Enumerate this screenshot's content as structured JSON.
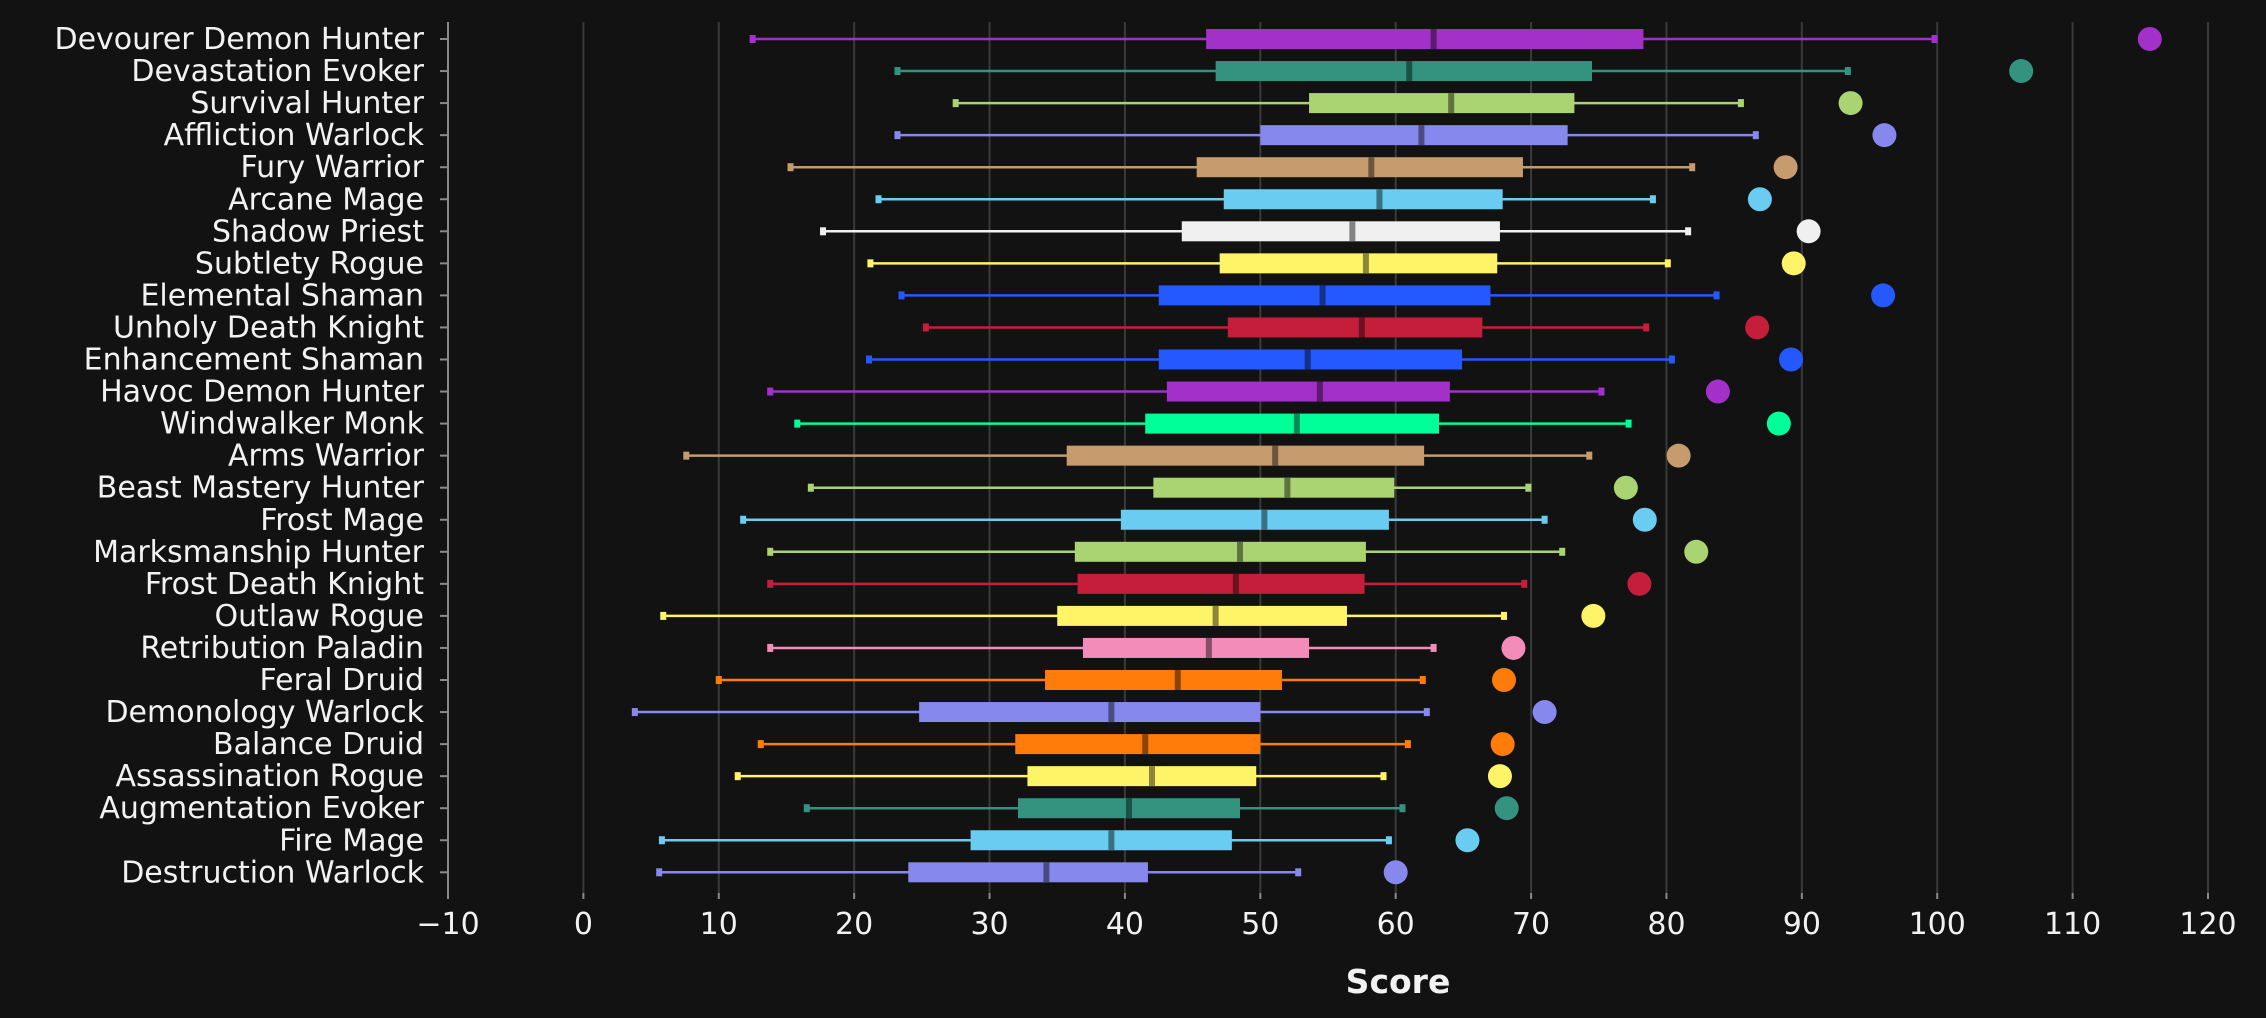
{
  "chart_data": {
    "type": "box",
    "orientation": "horizontal",
    "xlabel": "Score",
    "ylabel": "",
    "xlim": [
      -10,
      120
    ],
    "xticks": [
      -10,
      0,
      10,
      20,
      30,
      40,
      50,
      60,
      70,
      80,
      90,
      100,
      110,
      120
    ],
    "grid": "vertical",
    "series": [
      {
        "name": "Devourer Demon Hunter",
        "color": "#a330c9",
        "whisker_low": 12.5,
        "q1": 46.0,
        "median": 62.8,
        "q3": 78.3,
        "whisker_high": 99.8,
        "max": 115.7
      },
      {
        "name": "Devastation Evoker",
        "color": "#33937f",
        "whisker_low": 23.2,
        "q1": 46.7,
        "median": 61.0,
        "q3": 74.5,
        "whisker_high": 93.4,
        "max": 106.2
      },
      {
        "name": "Survival Hunter",
        "color": "#aad372",
        "whisker_low": 27.5,
        "q1": 53.6,
        "median": 64.1,
        "q3": 73.2,
        "whisker_high": 85.5,
        "max": 93.6
      },
      {
        "name": "Affliction Warlock",
        "color": "#8788ee",
        "whisker_low": 23.2,
        "q1": 50.0,
        "median": 61.9,
        "q3": 72.7,
        "whisker_high": 86.6,
        "max": 96.1
      },
      {
        "name": "Fury Warrior",
        "color": "#c69b6d",
        "whisker_low": 15.3,
        "q1": 45.3,
        "median": 58.2,
        "q3": 69.4,
        "whisker_high": 81.9,
        "max": 88.8
      },
      {
        "name": "Arcane Mage",
        "color": "#69ccf0",
        "whisker_low": 21.8,
        "q1": 47.3,
        "median": 58.8,
        "q3": 67.9,
        "whisker_high": 79.0,
        "max": 86.9
      },
      {
        "name": "Shadow Priest",
        "color": "#f0f0f0",
        "whisker_low": 17.7,
        "q1": 44.2,
        "median": 56.8,
        "q3": 67.7,
        "whisker_high": 81.6,
        "max": 90.5
      },
      {
        "name": "Subtlety Rogue",
        "color": "#fff468",
        "whisker_low": 21.2,
        "q1": 47.0,
        "median": 57.8,
        "q3": 67.5,
        "whisker_high": 80.1,
        "max": 89.4
      },
      {
        "name": "Elemental Shaman",
        "color": "#2459ff",
        "whisker_low": 23.5,
        "q1": 42.5,
        "median": 54.6,
        "q3": 67.0,
        "whisker_high": 83.7,
        "max": 96.0
      },
      {
        "name": "Unholy Death Knight",
        "color": "#c41e3a",
        "whisker_low": 25.3,
        "q1": 47.6,
        "median": 57.5,
        "q3": 66.4,
        "whisker_high": 78.5,
        "max": 86.7
      },
      {
        "name": "Enhancement Shaman",
        "color": "#2459ff",
        "whisker_low": 21.1,
        "q1": 42.5,
        "median": 53.5,
        "q3": 64.9,
        "whisker_high": 80.4,
        "max": 89.2
      },
      {
        "name": "Havoc Demon Hunter",
        "color": "#a330c9",
        "whisker_low": 13.8,
        "q1": 43.1,
        "median": 54.4,
        "q3": 64.0,
        "whisker_high": 75.2,
        "max": 83.8
      },
      {
        "name": "Windwalker Monk",
        "color": "#00ff98",
        "whisker_low": 15.8,
        "q1": 41.5,
        "median": 52.7,
        "q3": 63.2,
        "whisker_high": 77.2,
        "max": 88.3
      },
      {
        "name": "Arms Warrior",
        "color": "#c69b6d",
        "whisker_low": 7.6,
        "q1": 35.7,
        "median": 51.1,
        "q3": 62.1,
        "whisker_high": 74.3,
        "max": 80.9
      },
      {
        "name": "Beast Mastery Hunter",
        "color": "#aad372",
        "whisker_low": 16.8,
        "q1": 42.1,
        "median": 52.0,
        "q3": 59.9,
        "whisker_high": 69.8,
        "max": 77.0
      },
      {
        "name": "Frost Mage",
        "color": "#69ccf0",
        "whisker_low": 11.8,
        "q1": 39.7,
        "median": 50.3,
        "q3": 59.5,
        "whisker_high": 71.0,
        "max": 78.4
      },
      {
        "name": "Marksmanship Hunter",
        "color": "#aad372",
        "whisker_low": 13.8,
        "q1": 36.3,
        "median": 48.5,
        "q3": 57.8,
        "whisker_high": 72.3,
        "max": 82.2
      },
      {
        "name": "Frost Death Knight",
        "color": "#c41e3a",
        "whisker_low": 13.8,
        "q1": 36.5,
        "median": 48.2,
        "q3": 57.7,
        "whisker_high": 69.5,
        "max": 78.0
      },
      {
        "name": "Outlaw Rogue",
        "color": "#fff468",
        "whisker_low": 5.9,
        "q1": 35.0,
        "median": 46.7,
        "q3": 56.4,
        "whisker_high": 68.0,
        "max": 74.6
      },
      {
        "name": "Retribution Paladin",
        "color": "#f48cba",
        "whisker_low": 13.8,
        "q1": 36.9,
        "median": 46.2,
        "q3": 53.6,
        "whisker_high": 62.8,
        "max": 68.7
      },
      {
        "name": "Feral Druid",
        "color": "#ff7c0a",
        "whisker_low": 10.0,
        "q1": 34.1,
        "median": 43.9,
        "q3": 51.6,
        "whisker_high": 62.0,
        "max": 68.0
      },
      {
        "name": "Demonology Warlock",
        "color": "#8788ee",
        "whisker_low": 3.8,
        "q1": 24.8,
        "median": 39.0,
        "q3": 50.0,
        "whisker_high": 62.3,
        "max": 71.0
      },
      {
        "name": "Balance Druid",
        "color": "#ff7c0a",
        "whisker_low": 13.1,
        "q1": 31.9,
        "median": 41.5,
        "q3": 50.0,
        "whisker_high": 60.9,
        "max": 67.9
      },
      {
        "name": "Assassination Rogue",
        "color": "#fff468",
        "whisker_low": 11.4,
        "q1": 32.8,
        "median": 42.0,
        "q3": 49.7,
        "whisker_high": 59.1,
        "max": 67.7
      },
      {
        "name": "Augmentation Evoker",
        "color": "#33937f",
        "whisker_low": 16.5,
        "q1": 32.1,
        "median": 40.3,
        "q3": 48.5,
        "whisker_high": 60.5,
        "max": 68.2
      },
      {
        "name": "Fire Mage",
        "color": "#69ccf0",
        "whisker_low": 5.8,
        "q1": 28.6,
        "median": 39.0,
        "q3": 47.9,
        "whisker_high": 59.5,
        "max": 65.3
      },
      {
        "name": "Destruction Warlock",
        "color": "#8788ee",
        "whisker_low": 5.6,
        "q1": 24.0,
        "median": 34.2,
        "q3": 41.7,
        "whisker_high": 52.8,
        "max": 60.0
      }
    ]
  }
}
